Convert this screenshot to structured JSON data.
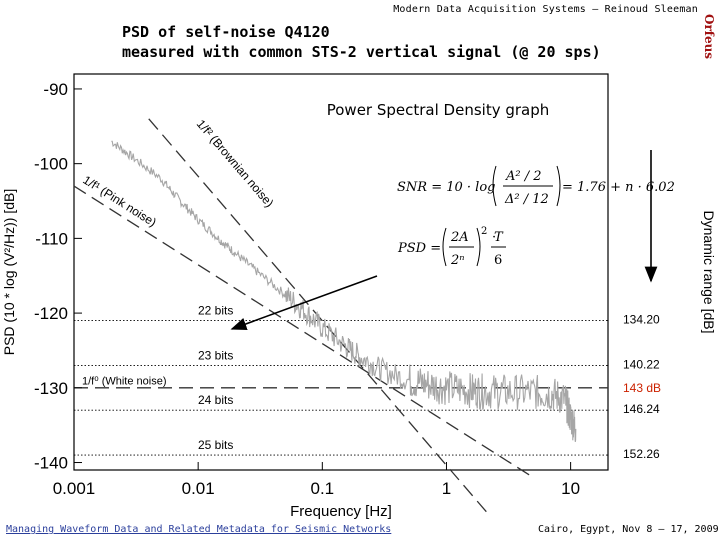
{
  "header": {
    "top_right": "Modern Data Acquisition Systems – Reinoud Sleeman",
    "logo_text": "Orfeus"
  },
  "title": {
    "line1": "PSD of self-noise Q4120",
    "line2": "measured with common STS-2 vertical signal (@ 20 sps)"
  },
  "footer": {
    "left": "Managing Waveform Data and Related Metadata for Seismic Networks",
    "right": "Cairo, Egypt, Nov 8 – 17, 2009"
  },
  "colors": {
    "psd_curve": "#a6a6a6",
    "accent_red": "#cc2200",
    "footer_link": "#2b3f9c"
  },
  "chart_data": {
    "type": "line",
    "inner_title": "Power Spectral Density graph",
    "xlabel": "Frequency [Hz]",
    "ylabel": "PSD (10 * log (V²/Hz)) [dB]",
    "y2label": "Dynamic range [dB]",
    "x_scale": "log",
    "xlim": [
      0.001,
      20
    ],
    "ylim": [
      -141,
      -88
    ],
    "x_ticks": [
      0.001,
      0.01,
      0.1,
      1,
      10
    ],
    "x_tick_labels": [
      "0.001",
      "0.01",
      "0.1",
      "1",
      "10"
    ],
    "y_ticks": [
      -90,
      -100,
      -110,
      -120,
      -130,
      -140
    ],
    "y_tick_labels": [
      "-90",
      "-100",
      "-110",
      "-120",
      "-130",
      "-140"
    ],
    "grid": false,
    "series": [
      {
        "points": [
          [
            0.002,
            -97.0
          ],
          [
            0.003,
            -99.2
          ],
          [
            0.005,
            -102.0
          ],
          [
            0.007,
            -104.8
          ],
          [
            0.01,
            -107.5
          ],
          [
            0.015,
            -110.2
          ],
          [
            0.02,
            -112.0
          ],
          [
            0.03,
            -114.5
          ],
          [
            0.05,
            -117.5
          ],
          [
            0.07,
            -119.5
          ],
          [
            0.1,
            -122.0
          ],
          [
            0.15,
            -124.3
          ],
          [
            0.2,
            -125.8
          ],
          [
            0.3,
            -127.6
          ],
          [
            0.5,
            -129.0
          ],
          [
            0.7,
            -129.5
          ],
          [
            1,
            -130.0
          ],
          [
            1.5,
            -130.3
          ],
          [
            2,
            -130.5
          ],
          [
            3,
            -130.5
          ],
          [
            5,
            -130.6
          ],
          [
            7,
            -130.8
          ],
          [
            9,
            -131.5
          ],
          [
            10,
            -134.0
          ],
          [
            11,
            -135.5
          ]
        ]
      }
    ],
    "reference_lines": [
      {
        "label": "1/f² (Brownian noise)",
        "points": [
          [
            0.004,
            -94.0
          ],
          [
            2.2,
            -147.0
          ]
        ]
      },
      {
        "label": "1/f¹ (Pink noise)",
        "points": [
          [
            0.001,
            -103.0
          ],
          [
            5.0,
            -142.0
          ]
        ]
      },
      {
        "label": "1/f⁰ (White noise)",
        "points": [
          [
            0.001,
            -130.0
          ],
          [
            20,
            -130.0
          ]
        ]
      }
    ],
    "bit_levels": [
      {
        "label": "22 bits",
        "y": -121.0,
        "dynamic_range": "134.20"
      },
      {
        "label": "23 bits",
        "y": -127.0,
        "dynamic_range": "140.22"
      },
      {
        "label": "24 bits",
        "y": -133.0,
        "dynamic_range": "146.24"
      },
      {
        "label": "25 bits",
        "y": -139.0,
        "dynamic_range": "152.26"
      }
    ],
    "highlight_value": "143 dB",
    "formulas": {
      "snr_lhs": "SNR = 10 · log",
      "snr_num": "A² / 2",
      "snr_den": "Δ² / 12",
      "snr_rhs": "= 1.76 + n · 6.02",
      "psd_lhs": "PSD =",
      "psd_num": "2A",
      "psd_den": "2ⁿ",
      "psd_exp": "2",
      "psd_tnum": "T",
      "psd_tden": "6"
    }
  }
}
